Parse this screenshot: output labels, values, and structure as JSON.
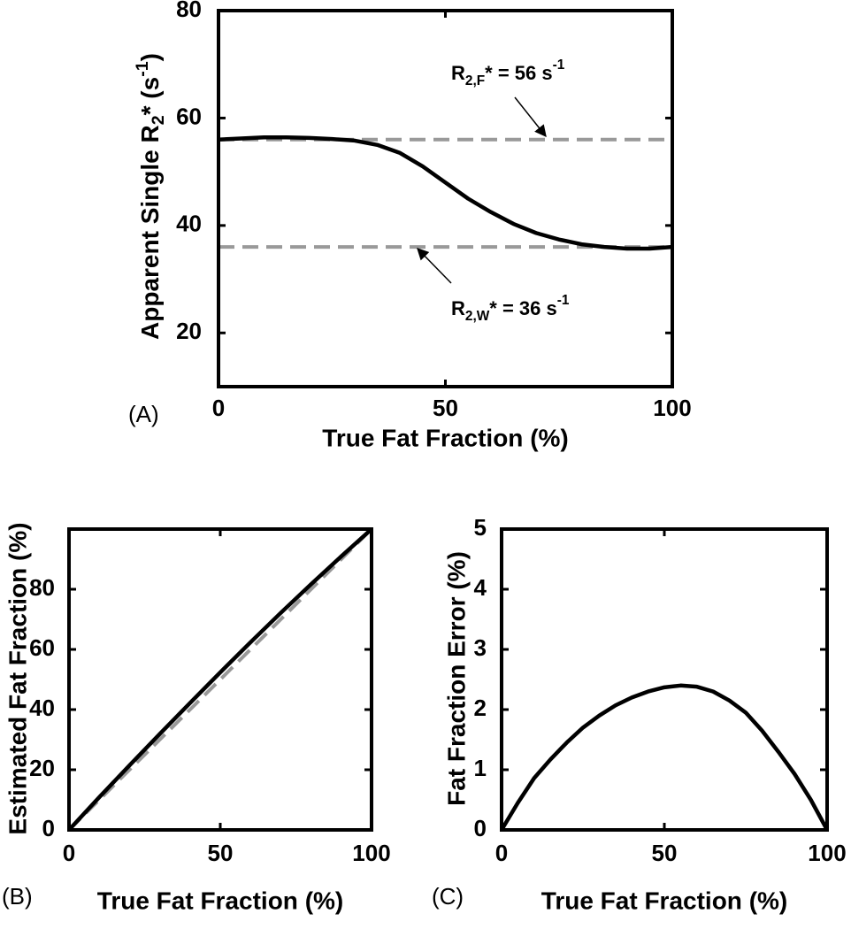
{
  "chart_data": [
    {
      "type": "line",
      "panel_label": "(A)",
      "xlabel": "True Fat Fraction (%)",
      "ylabel": [
        {
          "text": "Apparent Single R"
        },
        {
          "sub": "2"
        },
        {
          "text": "* (s"
        },
        {
          "sup": "-1"
        },
        {
          "text": ")"
        }
      ],
      "xlim": [
        0,
        100
      ],
      "xticks": [
        0,
        50,
        100
      ],
      "ylim": [
        10,
        80
      ],
      "yticks": [
        20,
        40,
        60,
        80
      ],
      "annotations": [
        [
          {
            "text": "R"
          },
          {
            "sub": "2,F"
          },
          {
            "text": "* = 56 s"
          },
          {
            "sup": "-1"
          }
        ],
        [
          {
            "text": "R"
          },
          {
            "sub": "2,W"
          },
          {
            "text": "* = 36 s"
          },
          {
            "sup": "-1"
          }
        ]
      ],
      "series": [
        {
          "color": "#999999",
          "style": "dashed",
          "x": [
            0,
            100
          ],
          "values": [
            56,
            56
          ]
        },
        {
          "color": "#999999",
          "style": "dashed",
          "x": [
            0,
            100
          ],
          "values": [
            36,
            36
          ]
        },
        {
          "color": "#000000",
          "style": "solid",
          "x": [
            0,
            5,
            10,
            15,
            20,
            25,
            30,
            35,
            40,
            45,
            50,
            55,
            60,
            65,
            70,
            75,
            80,
            85,
            90,
            95,
            100
          ],
          "values": [
            56,
            56.2,
            56.4,
            56.4,
            56.3,
            56.1,
            55.8,
            55,
            53.5,
            51,
            48,
            45,
            42.5,
            40.3,
            38.6,
            37.4,
            36.5,
            36,
            35.7,
            35.7,
            36
          ]
        }
      ]
    },
    {
      "type": "line",
      "panel_label": "(B)",
      "xlabel": "True Fat Fraction (%)",
      "ylabel": "Estimated Fat Fraction (%)",
      "xlim": [
        0,
        100
      ],
      "xticks": [
        0,
        50,
        100
      ],
      "ylim": [
        0,
        100
      ],
      "yticks": [
        0,
        20,
        40,
        60,
        80
      ],
      "series": [
        {
          "color": "#999999",
          "style": "dashed",
          "x": [
            0,
            100
          ],
          "values": [
            0,
            100
          ]
        },
        {
          "color": "#000000",
          "style": "solid",
          "x": [
            0,
            10,
            20,
            30,
            40,
            50,
            60,
            70,
            80,
            90,
            100
          ],
          "values": [
            0,
            10.86,
            21.45,
            31.9,
            42.2,
            52.37,
            62.38,
            72.15,
            81.65,
            90.93,
            100
          ]
        }
      ]
    },
    {
      "type": "line",
      "panel_label": "(C)",
      "xlabel": "True Fat Fraction (%)",
      "ylabel": "Fat Fraction Error (%)",
      "xlim": [
        0,
        100
      ],
      "xticks": [
        0,
        50,
        100
      ],
      "ylim": [
        0,
        5
      ],
      "yticks": [
        0,
        1,
        2,
        3,
        4,
        5
      ],
      "series": [
        {
          "color": "#000000",
          "style": "solid",
          "x": [
            0,
            5,
            10,
            15,
            20,
            25,
            30,
            35,
            40,
            45,
            50,
            55,
            60,
            65,
            70,
            75,
            80,
            85,
            90,
            95,
            100
          ],
          "values": [
            0,
            0.45,
            0.86,
            1.17,
            1.45,
            1.7,
            1.9,
            2.07,
            2.2,
            2.3,
            2.37,
            2.4,
            2.38,
            2.3,
            2.15,
            1.95,
            1.65,
            1.3,
            0.93,
            0.5,
            0
          ]
        }
      ]
    }
  ]
}
